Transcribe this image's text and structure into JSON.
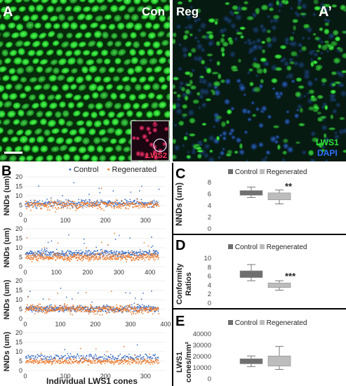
{
  "panelA": {
    "letter": "A",
    "label": "Con",
    "inset_label": "LWS2"
  },
  "panelA2": {
    "letter": "A’",
    "label": "Reg",
    "legend_lws1": "LWS1",
    "legend_dapi": "DAPI"
  },
  "panelB": {
    "letter": "B",
    "legend": [
      "Control",
      "Regenerated"
    ],
    "xlabel": "Individual LWS1 cones",
    "ylabel": "NNDs (um)",
    "colors": {
      "control": "#4472c4",
      "regenerated": "#ed7d31"
    }
  },
  "panelC": {
    "letter": "C",
    "legend": [
      "Control",
      "Regenerated"
    ],
    "ylabel": "NNDs (um)",
    "significance": "**"
  },
  "panelD": {
    "letter": "D",
    "legend": [
      "Control",
      "Regenerated"
    ],
    "ylabel_line1": "Conformity",
    "ylabel_line2": "Ratios",
    "significance": "***"
  },
  "panelE": {
    "letter": "E",
    "legend": [
      "Control",
      "Regenerated"
    ],
    "ylabel_line1": "LWS1",
    "ylabel_line2": "cones/mm²"
  },
  "chart_data": [
    {
      "type": "scatter",
      "panel": "B1",
      "ylim": [
        0,
        20
      ],
      "yticks": [
        0,
        5,
        10,
        15,
        20
      ],
      "xlim": [
        0,
        350
      ],
      "xticks": [
        0,
        100,
        200,
        300
      ],
      "series": [
        {
          "name": "Control",
          "n": 330,
          "mean": 6.0,
          "spread": 1.4
        },
        {
          "name": "Regenerated",
          "n": 330,
          "mean": 5.2,
          "spread": 1.6
        }
      ]
    },
    {
      "type": "scatter",
      "panel": "B2",
      "ylim": [
        0,
        20
      ],
      "yticks": [
        0,
        5,
        10,
        15,
        20
      ],
      "xlim": [
        0,
        450
      ],
      "xticks": [
        0,
        100,
        200,
        300,
        400
      ],
      "series": [
        {
          "name": "Control",
          "n": 410,
          "mean": 7.0,
          "spread": 1.3
        },
        {
          "name": "Regenerated",
          "n": 420,
          "mean": 5.0,
          "spread": 1.4
        }
      ]
    },
    {
      "type": "scatter",
      "panel": "B3",
      "ylim": [
        0,
        20
      ],
      "yticks": [
        0,
        5,
        10,
        15,
        20
      ],
      "xlim": [
        0,
        400
      ],
      "xticks": [
        0,
        100,
        200,
        300,
        400
      ],
      "series": [
        {
          "name": "Control",
          "n": 390,
          "mean": 5.2,
          "spread": 1.3
        },
        {
          "name": "Regenerated",
          "n": 390,
          "mean": 4.9,
          "spread": 1.5
        }
      ]
    },
    {
      "type": "scatter",
      "panel": "B4",
      "ylim": [
        0,
        20
      ],
      "yticks": [
        0,
        5,
        10,
        15,
        20
      ],
      "xlim": [
        0,
        350
      ],
      "xticks": [
        0,
        100,
        200,
        300
      ],
      "series": [
        {
          "name": "Control",
          "n": 230,
          "mean": 7.0,
          "spread": 1.2
        },
        {
          "name": "Regenerated",
          "n": 330,
          "mean": 4.8,
          "spread": 1.0
        }
      ]
    },
    {
      "type": "box",
      "panel": "C",
      "ylim": [
        0,
        8
      ],
      "yticks": [
        0,
        2,
        4,
        6,
        8
      ],
      "boxes": [
        {
          "name": "Control",
          "min": 5.4,
          "q1": 5.8,
          "q3": 6.6,
          "max": 7.2,
          "color": "#6f6f6f"
        },
        {
          "name": "Regenerated",
          "min": 4.3,
          "q1": 5.0,
          "q3": 6.2,
          "max": 6.7,
          "color": "#bdbdbd"
        }
      ]
    },
    {
      "type": "box",
      "panel": "D",
      "ylim": [
        0,
        10
      ],
      "yticks": [
        0,
        2,
        4,
        6,
        8,
        10
      ],
      "boxes": [
        {
          "name": "Control",
          "min": 5.0,
          "q1": 5.7,
          "q3": 7.2,
          "max": 8.6,
          "color": "#6f6f6f"
        },
        {
          "name": "Regenerated",
          "min": 2.9,
          "q1": 3.5,
          "q3": 4.5,
          "max": 5.0,
          "color": "#bdbdbd"
        }
      ]
    },
    {
      "type": "box",
      "panel": "E",
      "ylim": [
        0,
        40000
      ],
      "yticks": [
        0,
        10000,
        20000,
        30000,
        40000
      ],
      "boxes": [
        {
          "name": "Control",
          "min": 11000,
          "q1": 13500,
          "q3": 18000,
          "max": 20500,
          "color": "#6f6f6f"
        },
        {
          "name": "Regenerated",
          "min": 8500,
          "q1": 11500,
          "q3": 20500,
          "max": 29000,
          "color": "#bdbdbd"
        }
      ]
    }
  ]
}
